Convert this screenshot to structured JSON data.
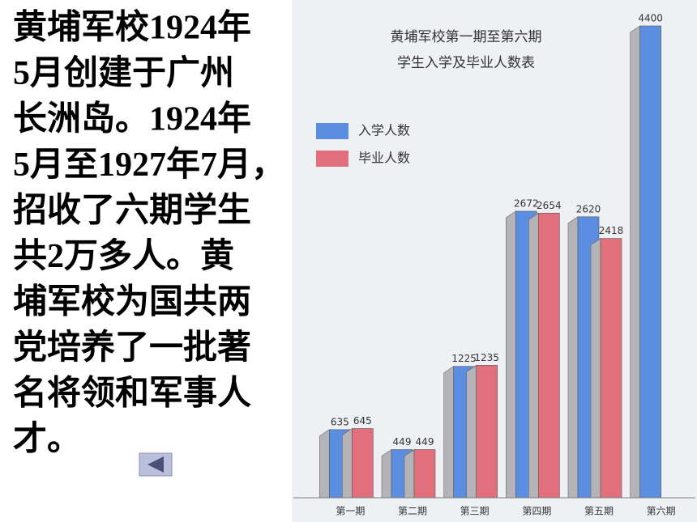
{
  "slide_text": {
    "lines": [
      "黄埔军校1924年",
      "5月创建于广州",
      "长洲岛。1924年",
      "5月至1927年7月，",
      "招收了六期学生",
      "共2万多人。黄",
      "埔军校为国共两",
      "党培养了一批著",
      "名将领和军事人",
      "才。"
    ]
  },
  "chart_data": {
    "type": "bar",
    "title": "黄埔军校第一期至第六期",
    "subtitle": "学生入学及毕业人数表",
    "categories": [
      "第一期",
      "第二期",
      "第三期",
      "第四期",
      "第五期",
      "第六期"
    ],
    "series": [
      {
        "name": "入学人数",
        "color": "#5b8ee0",
        "values": [
          635,
          449,
          1225,
          2672,
          2620,
          4400
        ]
      },
      {
        "name": "毕业人数",
        "color": "#e2707c",
        "values": [
          645,
          449,
          1235,
          2654,
          2418,
          null
        ]
      }
    ]
  }
}
